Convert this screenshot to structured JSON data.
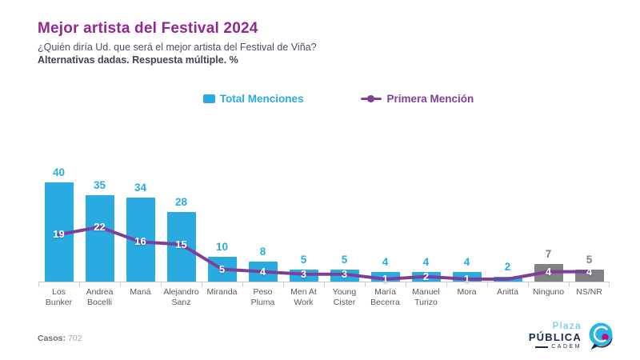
{
  "header": {
    "title": "Mejor artista del Festival 2024",
    "subtitle": "¿Quién diría Ud. que será el mejor artista del Festival de Viña?",
    "note": "Alternativas dadas. Respuesta múltiple. %"
  },
  "legend": [
    {
      "label": "Total Menciones",
      "color": "#29ABE2",
      "marker": "square"
    },
    {
      "label": "Primera Mención",
      "color": "#7F3F98",
      "marker": "line-dot"
    }
  ],
  "chart_data": {
    "type": "bar",
    "title": "Mejor artista del Festival 2024",
    "categories": [
      "Los\nBunker",
      "Andrea\nBocelli",
      "Maná",
      "Alejandro\nSanz",
      "Miranda",
      "Peso\nPluma",
      "Men At\nWork",
      "Young\nCister",
      "María\nBecerra",
      "Manuel\nTurizo",
      "Mora",
      "Anitta",
      "Ninguno",
      "NS/NR"
    ],
    "series": [
      {
        "name": "Total Menciones",
        "type": "bar",
        "values": [
          40,
          35,
          34,
          28,
          10,
          8,
          5,
          5,
          4,
          4,
          4,
          2,
          7,
          5
        ],
        "colors": [
          "#29ABE2",
          "#29ABE2",
          "#29ABE2",
          "#29ABE2",
          "#29ABE2",
          "#29ABE2",
          "#29ABE2",
          "#29ABE2",
          "#29ABE2",
          "#29ABE2",
          "#29ABE2",
          "#29ABE2",
          "#808285",
          "#808285"
        ]
      },
      {
        "name": "Primera Mención",
        "type": "line",
        "color": "#7F3F98",
        "values": [
          19,
          22,
          16,
          15,
          5,
          4,
          3,
          3,
          1,
          2,
          1,
          1,
          4,
          4
        ],
        "labels": [
          "19",
          "22",
          "16",
          "15",
          "5",
          "4",
          "3",
          "3",
          "1",
          "2",
          "1",
          "",
          "4",
          "4"
        ]
      }
    ],
    "ylim": [
      0,
      45
    ],
    "grid": false,
    "legend_position": "top-center"
  },
  "footer": {
    "cases_label": "Casos:",
    "cases_value": "702"
  },
  "logo": {
    "line1": "Plaza",
    "line2": "PÚBLICA",
    "line3": "CADEM"
  }
}
